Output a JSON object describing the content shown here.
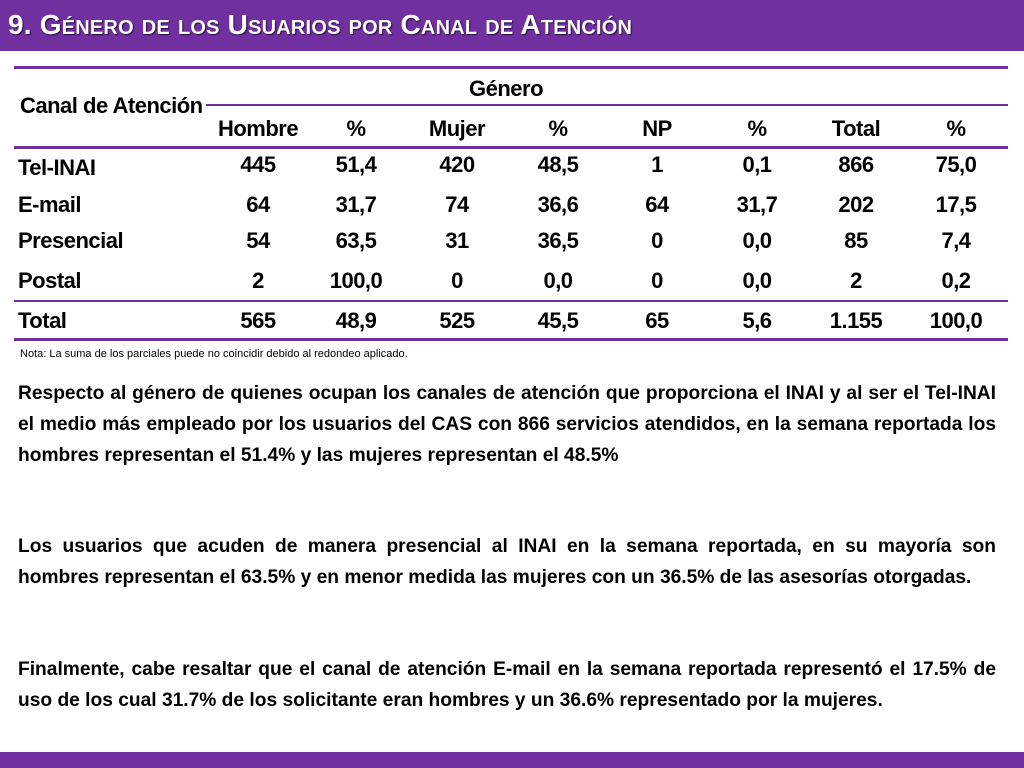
{
  "title": "9. Género de los Usuarios por Canal de Atención",
  "table": {
    "corner_header": "Canal de Atención",
    "group_header": "Género",
    "columns": [
      "Hombre",
      "%",
      "Mujer",
      "%",
      "NP",
      "%",
      "Total",
      "%"
    ],
    "rows": [
      {
        "label": "Tel-INAI",
        "values": [
          "445",
          "51,4",
          "420",
          "48,5",
          "1",
          "0,1",
          "866",
          "75,0"
        ]
      },
      {
        "label": "E-mail",
        "values": [
          "64",
          "31,7",
          "74",
          "36,6",
          "64",
          "31,7",
          "202",
          "17,5"
        ]
      },
      {
        "label": "Presencial",
        "values": [
          "54",
          "63,5",
          "31",
          "36,5",
          "0",
          "0,0",
          "85",
          "7,4"
        ]
      },
      {
        "label": "Postal",
        "values": [
          "2",
          "100,0",
          "0",
          "0,0",
          "0",
          "0,0",
          "2",
          "0,2"
        ]
      },
      {
        "label": "Total",
        "values": [
          "565",
          "48,9",
          "525",
          "45,5",
          "65",
          "5,6",
          "1.155",
          "100,0"
        ]
      }
    ]
  },
  "note": "Nota: La suma de los parciales puede no coincidir debido al redondeo aplicado.",
  "paragraphs": [
    "Respecto al género de quienes ocupan los canales de atención que proporciona el INAI y al ser el Tel-INAI el medio más empleado por los usuarios del CAS con 866 servicios atendidos, en la semana reportada los hombres representan el 51.4% y las mujeres representan el 48.5%",
    "Los usuarios que acuden de manera presencial al INAI en la semana reportada, en su mayoría son hombres representan el 63.5% y en menor medida las mujeres con un 36.5% de las asesorías otorgadas.",
    "Finalmente, cabe resaltar que el canal de atención E-mail en la semana reportada representó el 17.5% de uso de los cual 31.7% de los solicitante eran hombres y un 36.6% representado por la mujeres."
  ],
  "colors": {
    "accent": "#7030a0"
  }
}
